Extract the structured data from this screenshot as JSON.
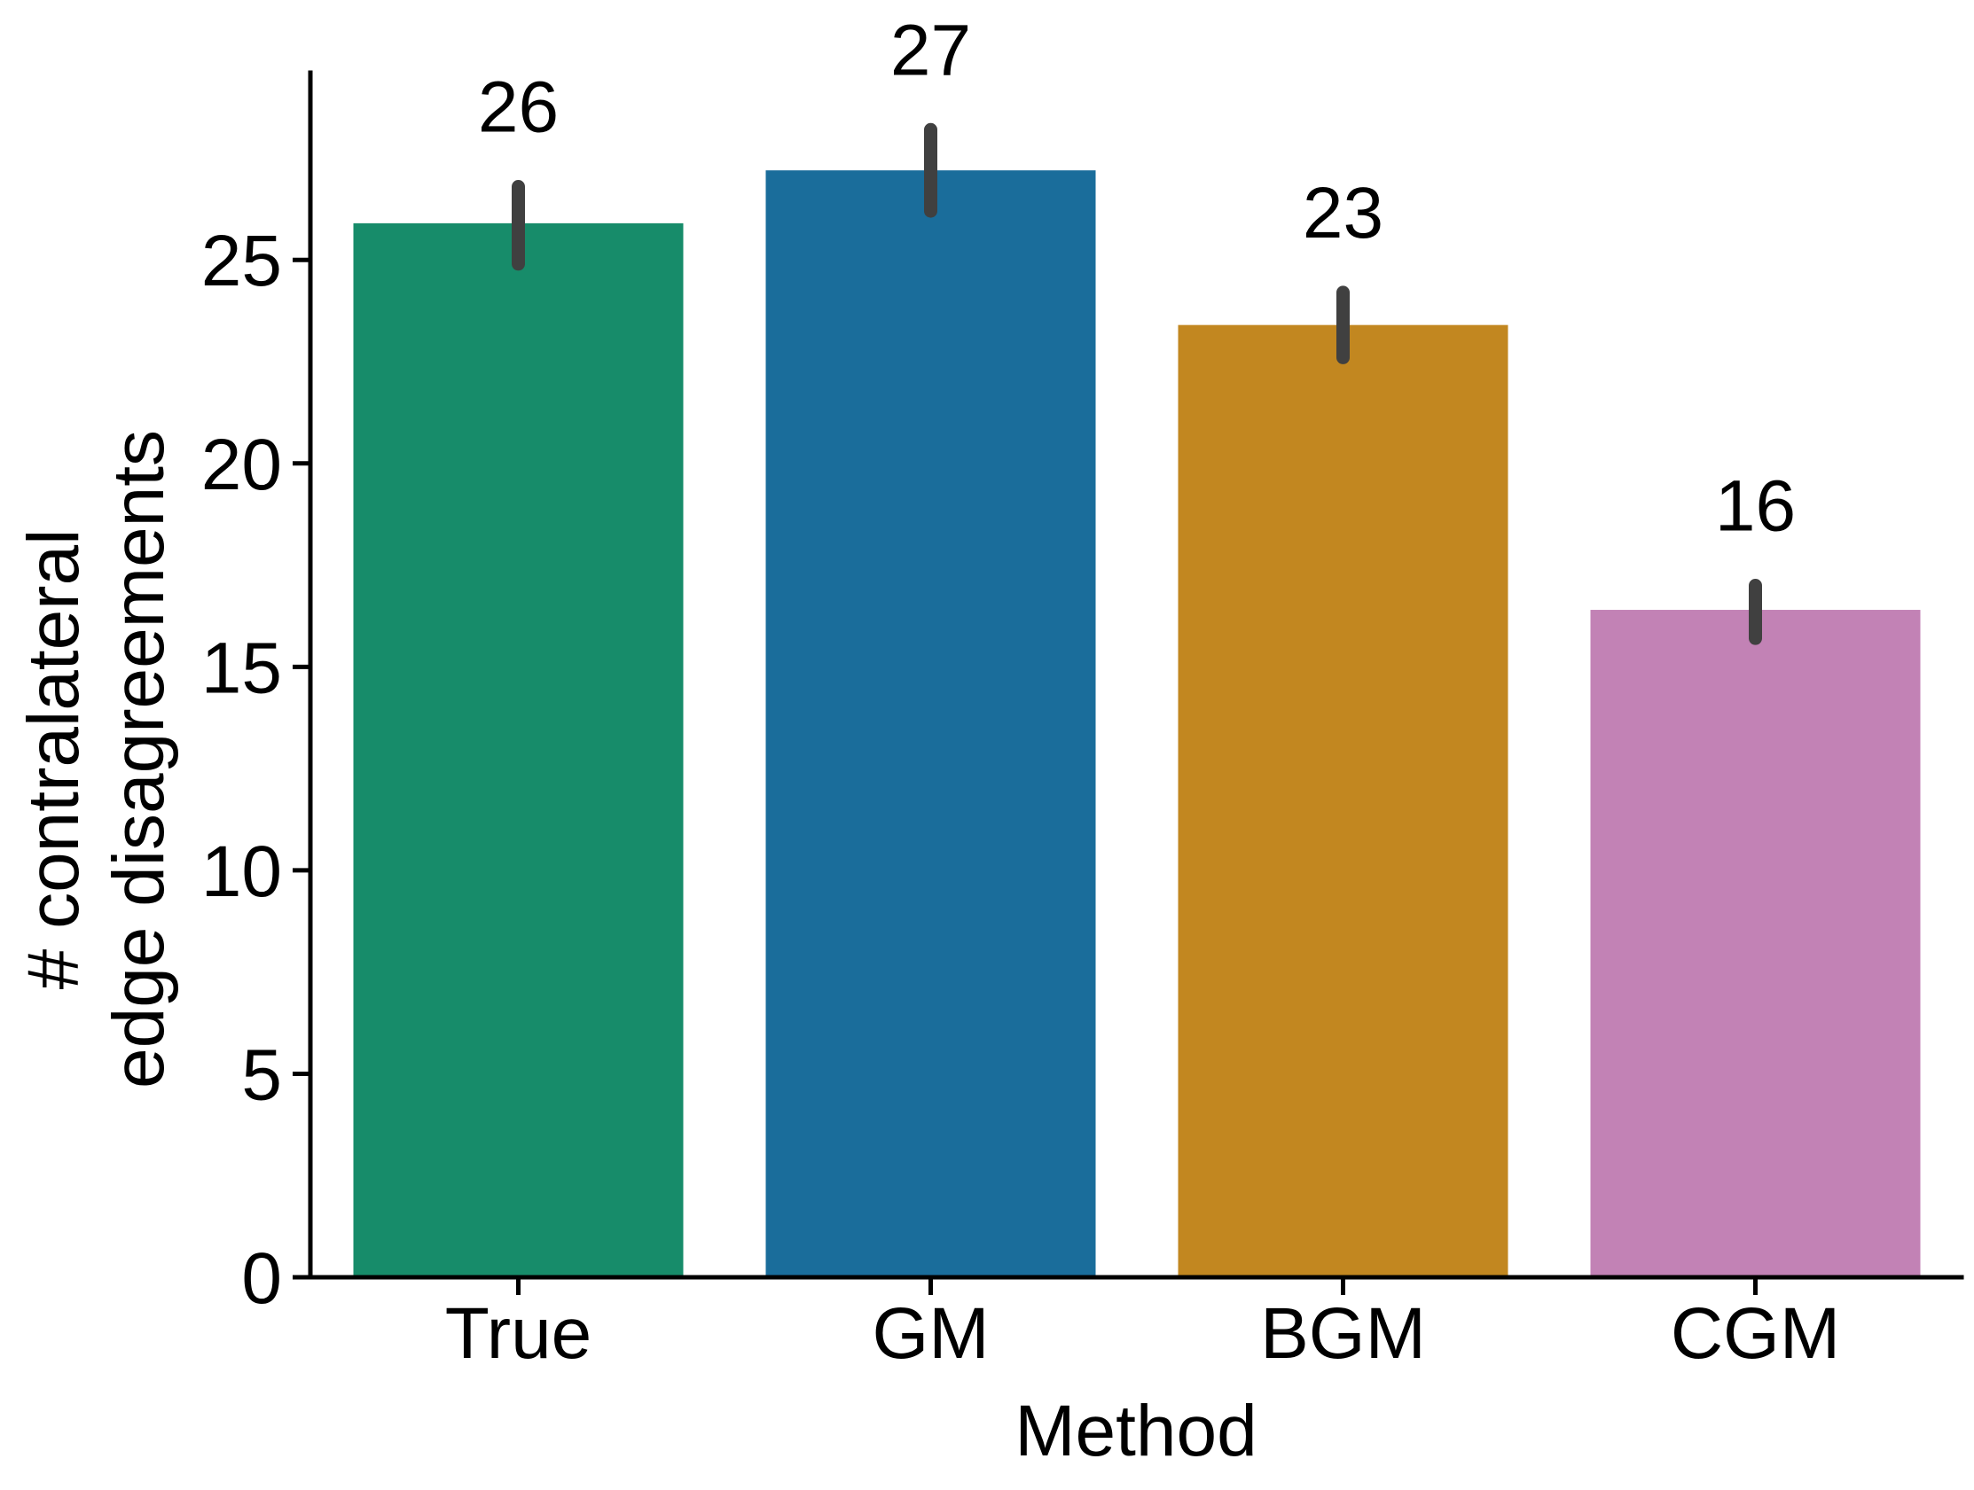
{
  "chart_data": {
    "type": "bar",
    "title": "",
    "xlabel": "Method",
    "ylabel_lines": [
      "# contralateral",
      "edge disagreements"
    ],
    "categories": [
      "True",
      "GM",
      "BGM",
      "CGM"
    ],
    "values": [
      25.9,
      27.2,
      23.4,
      16.4
    ],
    "error_low": [
      24.9,
      26.2,
      22.6,
      15.7
    ],
    "error_high": [
      26.8,
      28.2,
      24.2,
      17.0
    ],
    "value_labels": [
      "26",
      "27",
      "23",
      "16"
    ],
    "colors": [
      "#178c6a",
      "#1a6d9b",
      "#c28720",
      "#c282b5"
    ],
    "error_color": "#404040",
    "yticks": [
      0,
      5,
      10,
      15,
      20,
      25
    ],
    "ytick_labels": [
      "0",
      "5",
      "10",
      "15",
      "20",
      "25"
    ],
    "ylim": [
      0,
      29.6
    ],
    "grid": false,
    "legend": "none"
  }
}
